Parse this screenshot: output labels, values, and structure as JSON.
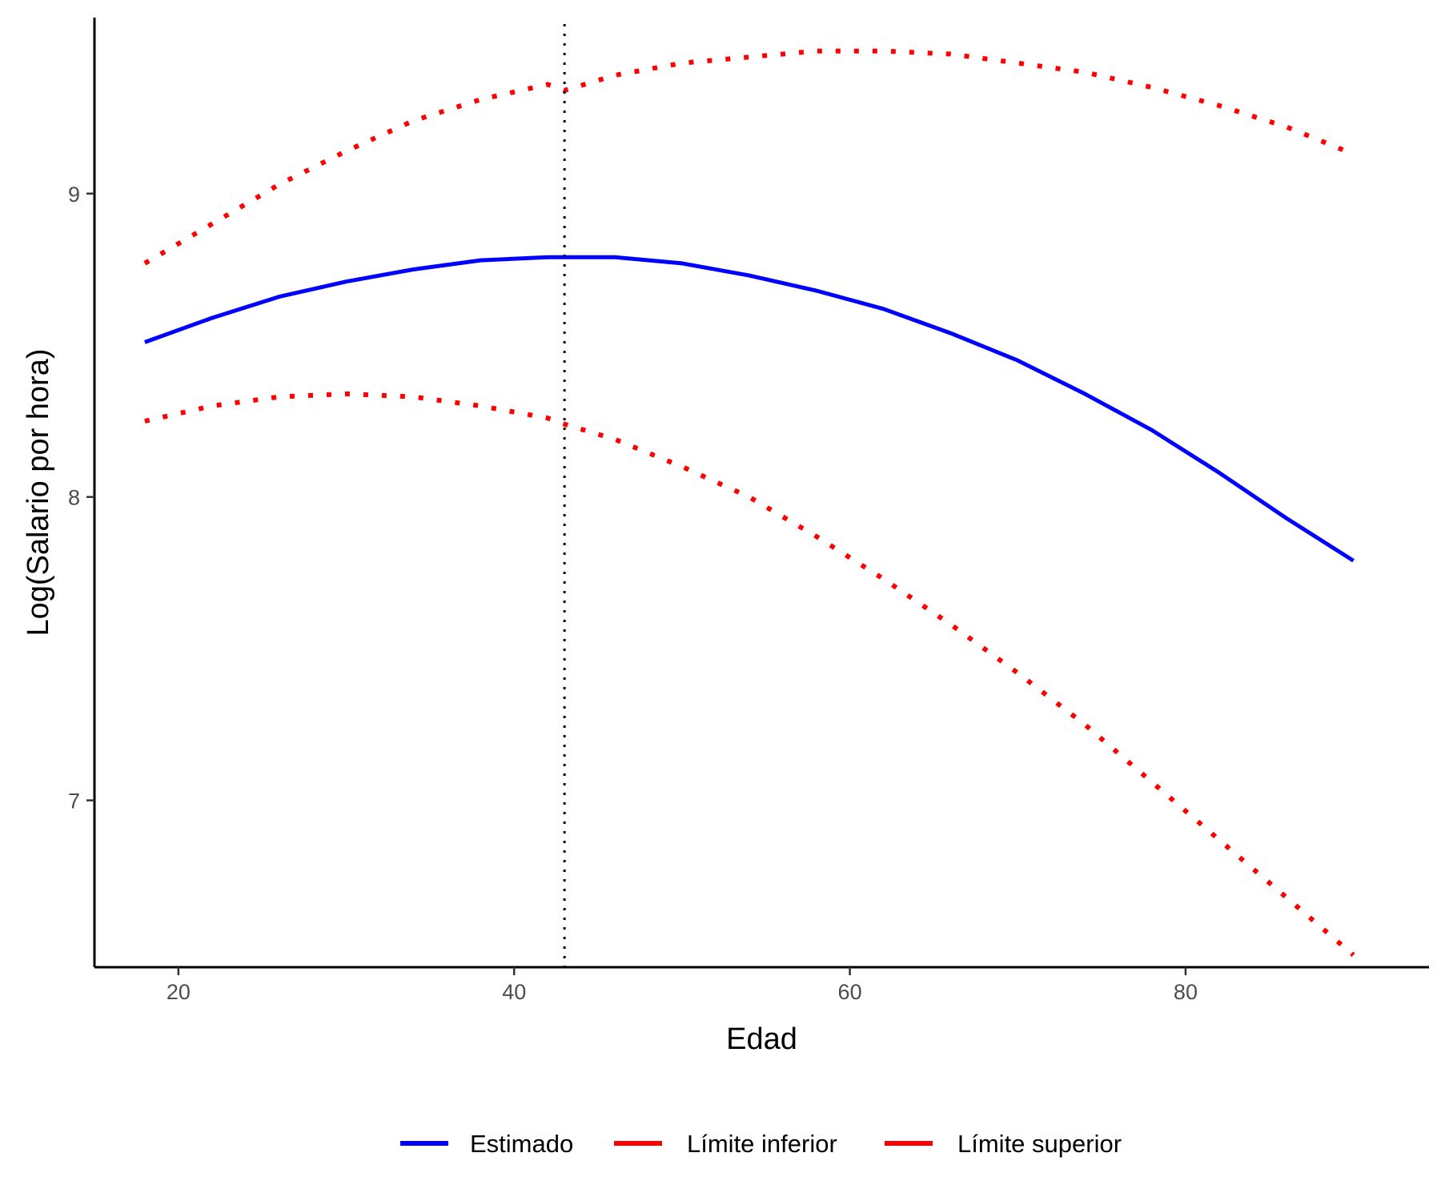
{
  "chart_data": {
    "type": "line",
    "title": "",
    "xlabel": "Edad",
    "ylabel": "Log(Salario por hora)",
    "xlim": [
      15.0,
      94.5
    ],
    "ylim": [
      6.45,
      9.58
    ],
    "x_ticks": [
      20,
      40,
      60,
      80
    ],
    "y_ticks": [
      7,
      8,
      9
    ],
    "grid": false,
    "legend_position": "bottom",
    "vline": {
      "x": 43,
      "style": "dotted",
      "color": "#000000"
    },
    "x": [
      18,
      22,
      26,
      30,
      34,
      38,
      42,
      43,
      46,
      50,
      54,
      58,
      62,
      66,
      70,
      74,
      78,
      82,
      86,
      90
    ],
    "series": [
      {
        "name": "Estimado",
        "color": "#0000ff",
        "style": "solid",
        "values": [
          8.51,
          8.59,
          8.66,
          8.71,
          8.75,
          8.78,
          8.79,
          8.79,
          8.79,
          8.77,
          8.73,
          8.68,
          8.62,
          8.54,
          8.45,
          8.34,
          8.22,
          8.08,
          7.93,
          7.79
        ]
      },
      {
        "name": "Límite inferior",
        "color": "#ff0000",
        "style": "dotted",
        "values": [
          8.25,
          8.3,
          8.33,
          8.34,
          8.33,
          8.3,
          8.26,
          8.24,
          8.19,
          8.1,
          8.0,
          7.87,
          7.73,
          7.58,
          7.42,
          7.25,
          7.06,
          6.87,
          6.68,
          6.49
        ]
      },
      {
        "name": "Límite superior",
        "color": "#ff0000",
        "style": "dotted",
        "values": [
          8.77,
          8.9,
          9.03,
          9.14,
          9.24,
          9.31,
          9.36,
          9.34,
          9.39,
          9.43,
          9.45,
          9.47,
          9.47,
          9.46,
          9.43,
          9.4,
          9.35,
          9.29,
          9.22,
          9.13
        ]
      }
    ],
    "legend": [
      {
        "label": "Estimado",
        "color": "#0000ff"
      },
      {
        "label": "Límite inferior",
        "color": "#ff0000"
      },
      {
        "label": "Límite superior",
        "color": "#ff0000"
      }
    ]
  }
}
